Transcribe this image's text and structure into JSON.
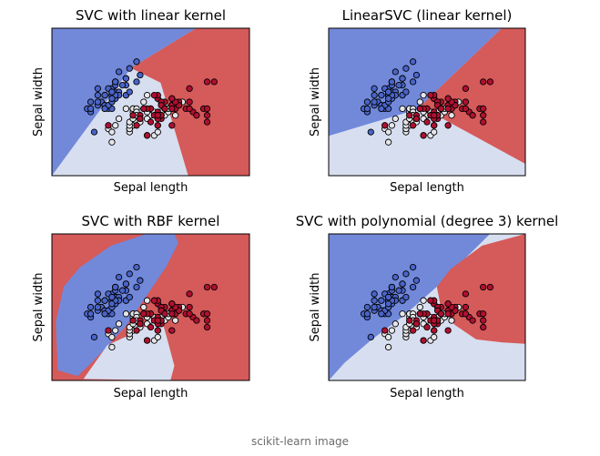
{
  "caption": "scikit-learn image",
  "colors": {
    "blue_region": "#7289da",
    "white_region": "#d7def0",
    "red_region": "#d55a5a",
    "class0_point": "#4a64c8",
    "class1_point": "#e6e6ea",
    "class2_point": "#b01030",
    "edge": "#000000"
  },
  "chart_data": [
    {
      "type": "scatter",
      "title": "SVC with linear kernel",
      "xlabel": "Sepal length",
      "ylabel": "Sepal width",
      "grid": false,
      "ticks": "hidden"
    },
    {
      "type": "scatter",
      "title": "LinearSVC (linear kernel)",
      "xlabel": "Sepal length",
      "ylabel": "Sepal width",
      "grid": false,
      "ticks": "hidden"
    },
    {
      "type": "scatter",
      "title": "SVC with RBF kernel",
      "xlabel": "Sepal length",
      "ylabel": "Sepal width",
      "grid": false,
      "ticks": "hidden"
    },
    {
      "type": "scatter",
      "title": "SVC with polynomial (degree 3) kernel",
      "xlabel": "Sepal length",
      "ylabel": "Sepal width",
      "grid": false,
      "ticks": "hidden"
    }
  ],
  "points": {
    "class0": [
      [
        5.1,
        3.5
      ],
      [
        4.9,
        3.0
      ],
      [
        4.7,
        3.2
      ],
      [
        4.6,
        3.1
      ],
      [
        5.0,
        3.6
      ],
      [
        5.4,
        3.9
      ],
      [
        4.6,
        3.4
      ],
      [
        5.0,
        3.4
      ],
      [
        4.4,
        2.9
      ],
      [
        4.9,
        3.1
      ],
      [
        5.4,
        3.7
      ],
      [
        4.8,
        3.4
      ],
      [
        4.8,
        3.0
      ],
      [
        4.3,
        3.0
      ],
      [
        5.8,
        4.0
      ],
      [
        5.7,
        4.4
      ],
      [
        5.4,
        3.9
      ],
      [
        5.1,
        3.5
      ],
      [
        5.7,
        3.8
      ],
      [
        5.1,
        3.8
      ],
      [
        5.4,
        3.4
      ],
      [
        5.1,
        3.7
      ],
      [
        4.6,
        3.6
      ],
      [
        5.1,
        3.3
      ],
      [
        4.8,
        3.4
      ],
      [
        5.0,
        3.0
      ],
      [
        5.0,
        3.4
      ],
      [
        5.2,
        3.5
      ],
      [
        5.2,
        3.4
      ],
      [
        4.7,
        3.2
      ],
      [
        4.8,
        3.1
      ],
      [
        5.4,
        3.4
      ],
      [
        5.2,
        4.1
      ],
      [
        5.5,
        4.2
      ],
      [
        4.9,
        3.1
      ],
      [
        5.0,
        3.2
      ],
      [
        5.5,
        3.5
      ],
      [
        4.9,
        3.6
      ],
      [
        4.4,
        3.0
      ],
      [
        5.1,
        3.4
      ],
      [
        5.0,
        3.5
      ],
      [
        4.5,
        2.3
      ],
      [
        4.4,
        3.2
      ],
      [
        5.0,
        3.5
      ],
      [
        5.1,
        3.8
      ],
      [
        4.8,
        3.0
      ],
      [
        5.1,
        3.8
      ],
      [
        4.6,
        3.2
      ],
      [
        5.3,
        3.7
      ],
      [
        5.0,
        3.3
      ]
    ],
    "class1": [
      [
        7.0,
        3.2
      ],
      [
        6.4,
        3.2
      ],
      [
        6.9,
        3.1
      ],
      [
        5.5,
        2.3
      ],
      [
        6.5,
        2.8
      ],
      [
        5.7,
        2.8
      ],
      [
        6.3,
        3.3
      ],
      [
        4.9,
        2.4
      ],
      [
        6.6,
        2.9
      ],
      [
        5.2,
        2.7
      ],
      [
        5.0,
        2.0
      ],
      [
        5.9,
        3.0
      ],
      [
        6.0,
        2.2
      ],
      [
        6.1,
        2.9
      ],
      [
        5.6,
        2.9
      ],
      [
        6.7,
        3.1
      ],
      [
        5.6,
        3.0
      ],
      [
        5.8,
        2.7
      ],
      [
        6.2,
        2.2
      ],
      [
        5.6,
        2.5
      ],
      [
        5.9,
        3.2
      ],
      [
        6.1,
        2.8
      ],
      [
        6.3,
        2.5
      ],
      [
        6.1,
        2.8
      ],
      [
        6.4,
        2.9
      ],
      [
        6.6,
        3.0
      ],
      [
        6.8,
        2.8
      ],
      [
        6.7,
        3.0
      ],
      [
        6.0,
        2.9
      ],
      [
        5.7,
        2.6
      ],
      [
        5.5,
        2.4
      ],
      [
        5.5,
        2.4
      ],
      [
        5.8,
        2.7
      ],
      [
        6.0,
        2.7
      ],
      [
        5.4,
        3.0
      ],
      [
        6.0,
        3.4
      ],
      [
        6.7,
        3.1
      ],
      [
        6.3,
        2.3
      ],
      [
        5.6,
        3.0
      ],
      [
        5.5,
        2.5
      ],
      [
        5.5,
        2.6
      ],
      [
        6.1,
        3.0
      ],
      [
        5.8,
        2.6
      ],
      [
        5.0,
        2.3
      ],
      [
        5.6,
        2.7
      ],
      [
        5.7,
        3.0
      ],
      [
        5.7,
        2.9
      ],
      [
        6.2,
        2.9
      ],
      [
        5.1,
        2.5
      ],
      [
        5.7,
        2.8
      ]
    ],
    "class2": [
      [
        6.3,
        3.3
      ],
      [
        5.8,
        2.7
      ],
      [
        7.1,
        3.0
      ],
      [
        6.3,
        2.9
      ],
      [
        6.5,
        3.0
      ],
      [
        7.6,
        3.0
      ],
      [
        4.9,
        2.5
      ],
      [
        7.3,
        2.9
      ],
      [
        6.7,
        2.5
      ],
      [
        7.2,
        3.6
      ],
      [
        6.5,
        3.2
      ],
      [
        6.4,
        2.7
      ],
      [
        6.8,
        3.0
      ],
      [
        5.7,
        2.5
      ],
      [
        5.8,
        2.8
      ],
      [
        6.4,
        3.2
      ],
      [
        6.5,
        3.0
      ],
      [
        7.7,
        3.8
      ],
      [
        7.7,
        2.6
      ],
      [
        6.0,
        2.2
      ],
      [
        6.9,
        3.2
      ],
      [
        5.6,
        2.8
      ],
      [
        7.7,
        2.8
      ],
      [
        6.3,
        2.7
      ],
      [
        6.7,
        3.3
      ],
      [
        7.2,
        3.2
      ],
      [
        6.2,
        2.8
      ],
      [
        6.1,
        3.0
      ],
      [
        6.4,
        2.8
      ],
      [
        7.2,
        3.0
      ],
      [
        7.4,
        2.8
      ],
      [
        7.9,
        3.8
      ],
      [
        6.4,
        2.8
      ],
      [
        6.3,
        2.8
      ],
      [
        6.1,
        2.6
      ],
      [
        7.7,
        3.0
      ],
      [
        6.3,
        3.4
      ],
      [
        6.4,
        3.1
      ],
      [
        6.0,
        3.0
      ],
      [
        6.9,
        3.1
      ],
      [
        6.7,
        3.1
      ],
      [
        6.9,
        3.1
      ],
      [
        5.8,
        2.7
      ],
      [
        6.8,
        3.2
      ],
      [
        6.7,
        3.3
      ],
      [
        6.7,
        3.0
      ],
      [
        6.3,
        2.5
      ],
      [
        6.5,
        3.0
      ],
      [
        6.2,
        3.4
      ],
      [
        5.9,
        3.0
      ]
    ]
  }
}
